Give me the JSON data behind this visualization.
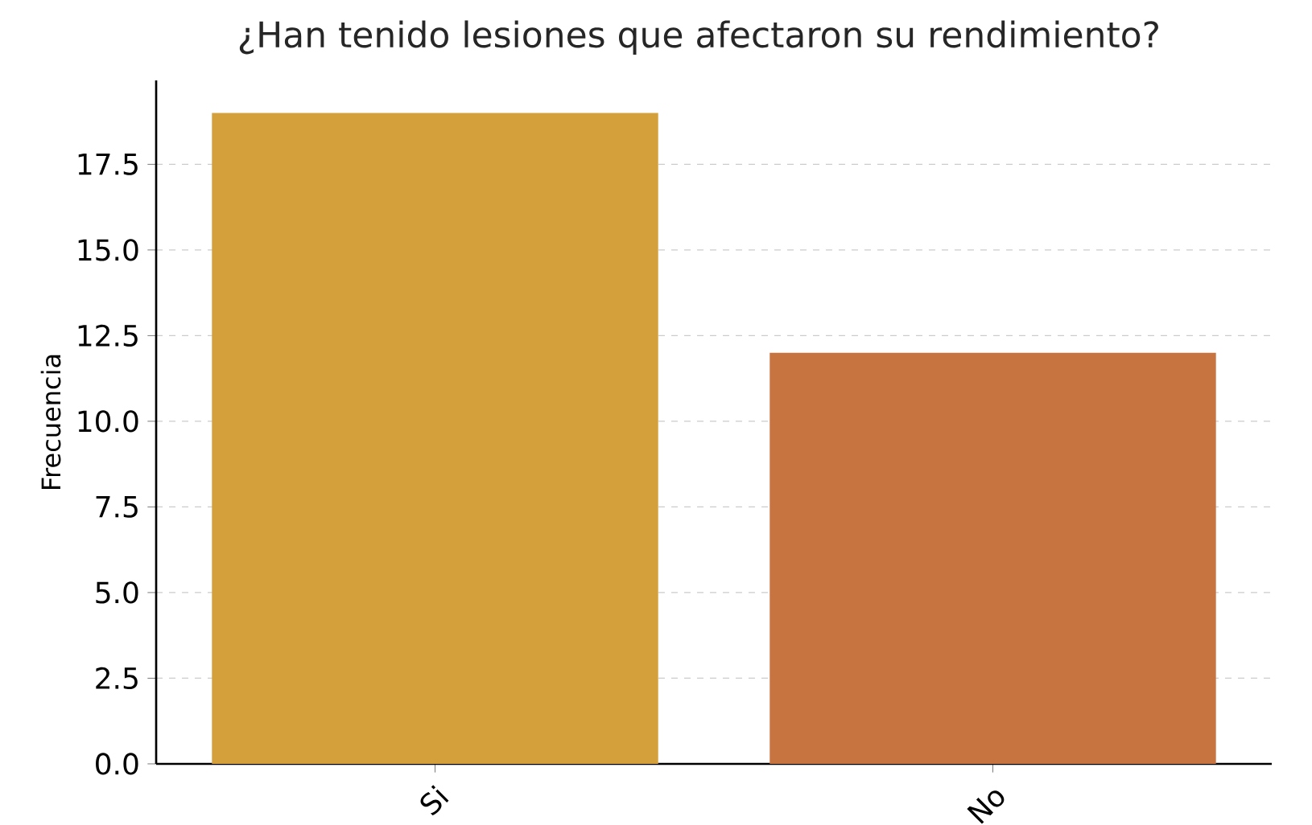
{
  "chart_data": {
    "type": "bar",
    "title": "¿Han tenido lesiones que afectaron su rendimiento?",
    "ylabel": "Frecuencia",
    "categories": [
      "Si",
      "No"
    ],
    "values": [
      19,
      12
    ],
    "colors": [
      "#d4a03c",
      "#c87441"
    ],
    "ylim": [
      0,
      19.95
    ],
    "yticks": [
      {
        "value": 0,
        "label": "0.0"
      },
      {
        "value": 2.5,
        "label": "2.5"
      },
      {
        "value": 5,
        "label": "5.0"
      },
      {
        "value": 7.5,
        "label": "7.5"
      },
      {
        "value": 10,
        "label": "10.0"
      },
      {
        "value": 12.5,
        "label": "12.5"
      },
      {
        "value": 15,
        "label": "15.0"
      },
      {
        "value": 17.5,
        "label": "17.5"
      }
    ],
    "grid": "y"
  }
}
